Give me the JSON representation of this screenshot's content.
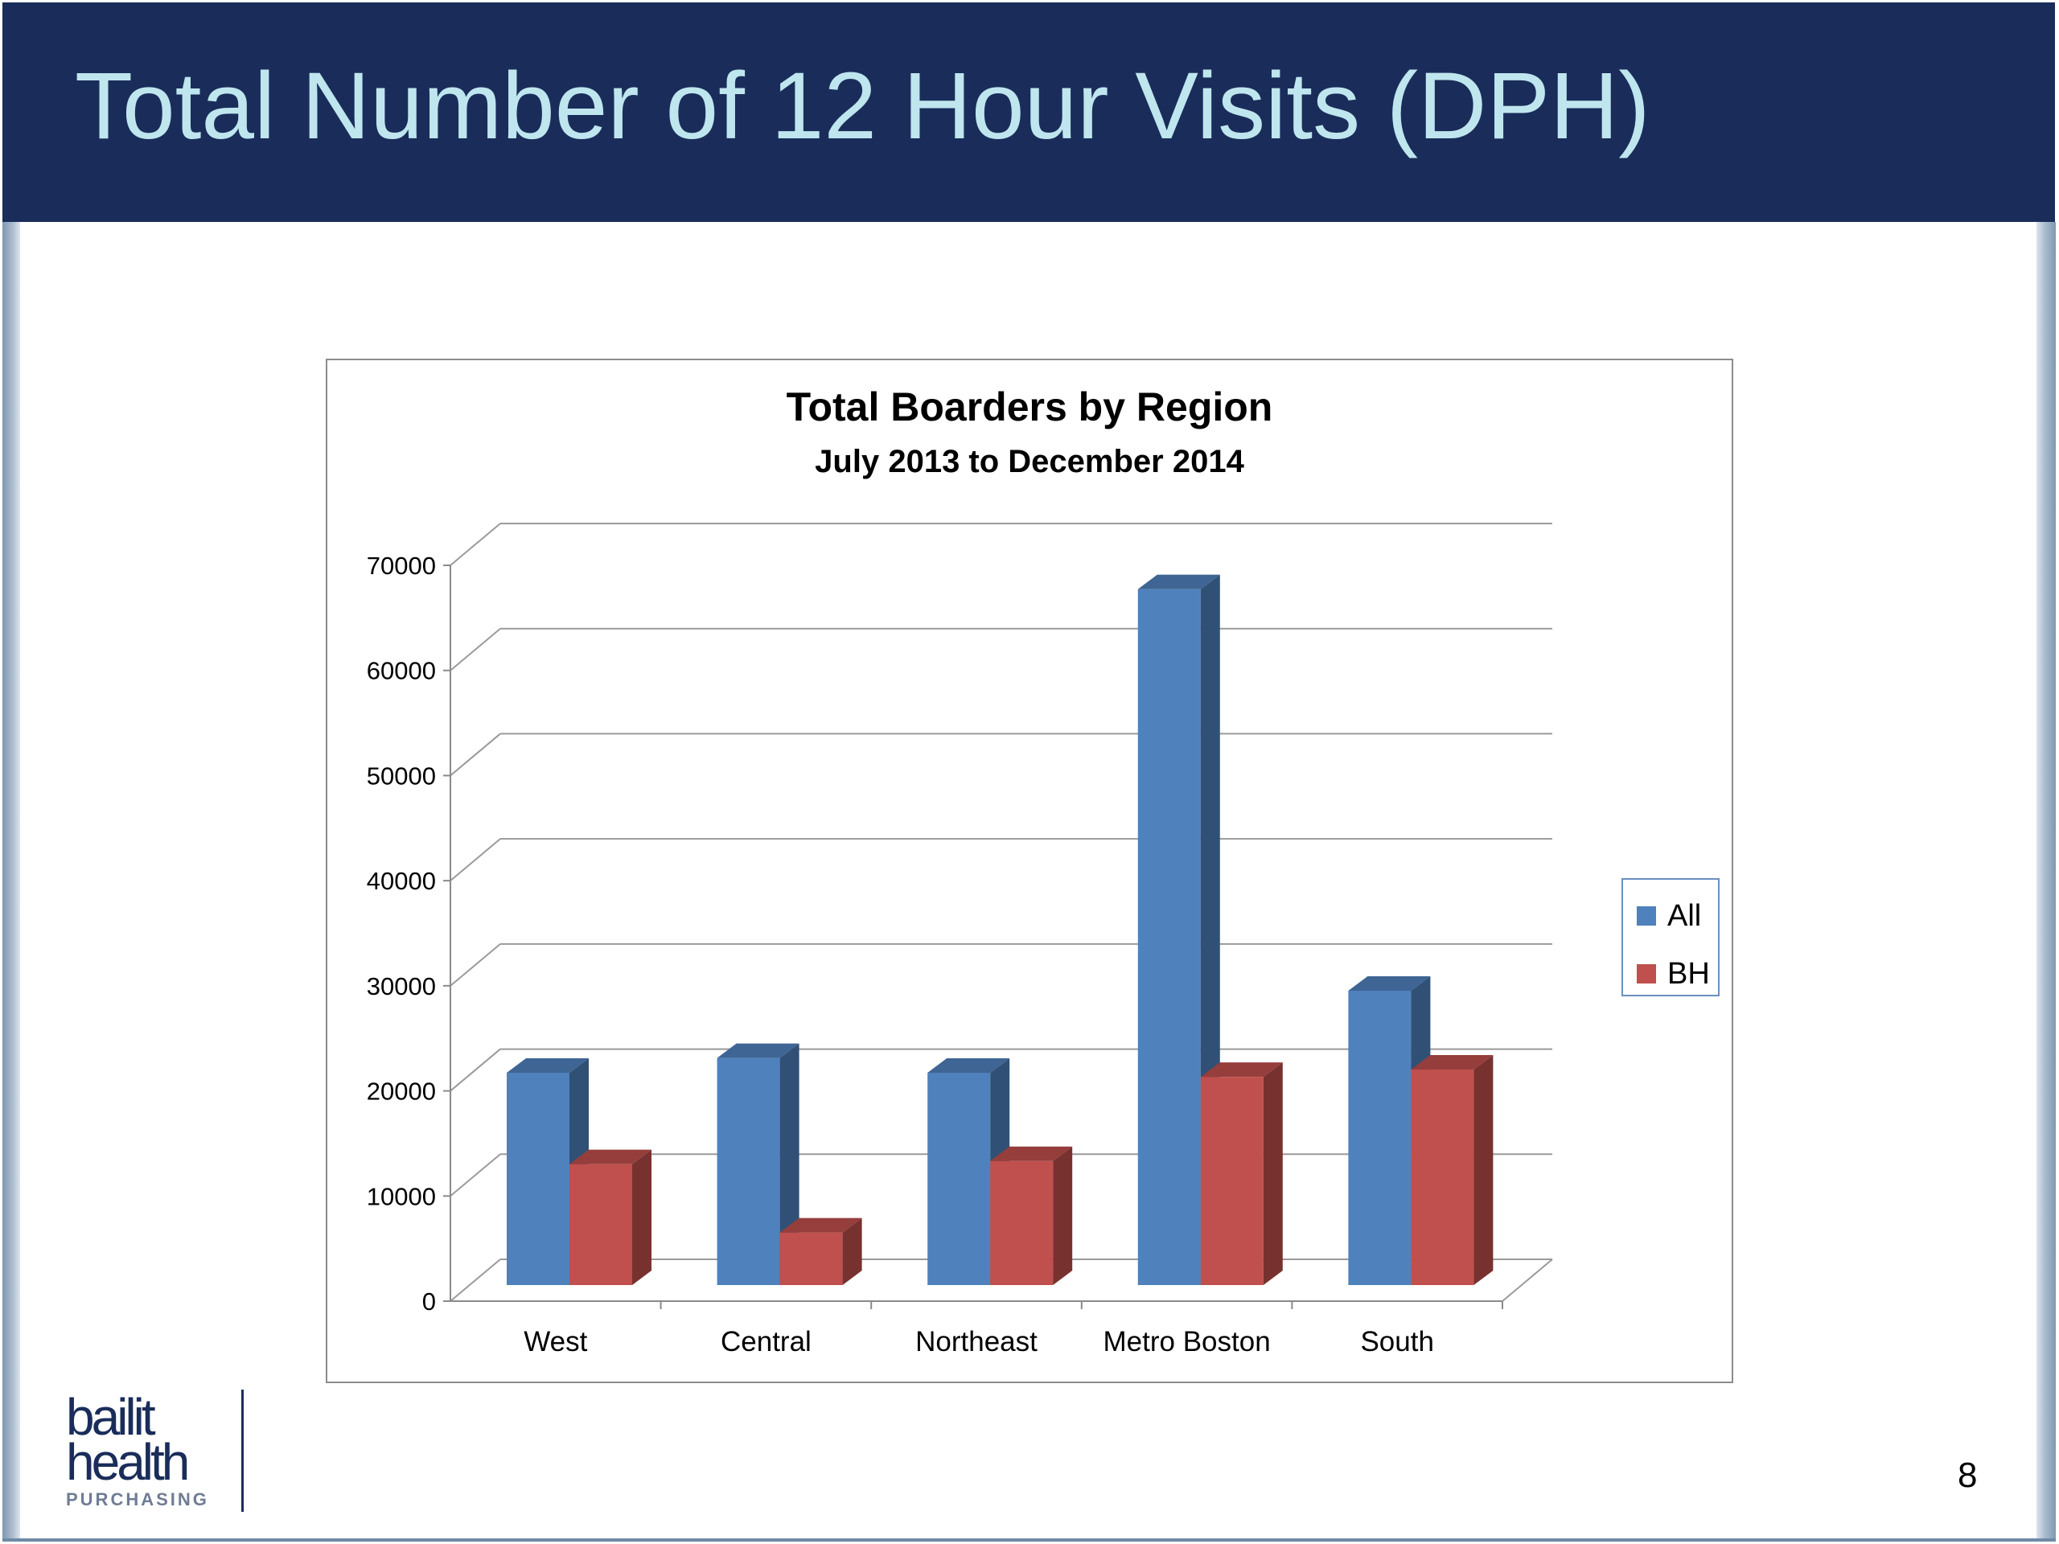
{
  "slide": {
    "title": "Total Number of 12 Hour Visits (DPH)",
    "page_number": "8",
    "logo": {
      "line1": "bailit",
      "line2": "health",
      "line3": "PURCHASING"
    },
    "colors": {
      "header_background": "#1a2d5a",
      "title_text": "#bfe6ee"
    }
  },
  "chart_data": {
    "type": "bar",
    "title": "Total Boarders by Region",
    "subtitle": "July 2013 to December 2014",
    "xlabel": "",
    "ylabel": "",
    "categories": [
      "West",
      "Central",
      "Northeast",
      "Metro Boston",
      "South"
    ],
    "series": [
      {
        "name": "All",
        "color": "#4f81bd",
        "values": [
          20200,
          21600,
          20200,
          66200,
          28000
        ]
      },
      {
        "name": "BH",
        "color": "#c0504d",
        "values": [
          11500,
          5000,
          11800,
          19800,
          20500
        ]
      }
    ],
    "ylim": [
      0,
      70000
    ],
    "yticks": [
      "0",
      "10000",
      "20000",
      "30000",
      "40000",
      "50000",
      "60000",
      "70000"
    ],
    "grid": true,
    "legend": "right",
    "style": "3d-clustered-column"
  }
}
